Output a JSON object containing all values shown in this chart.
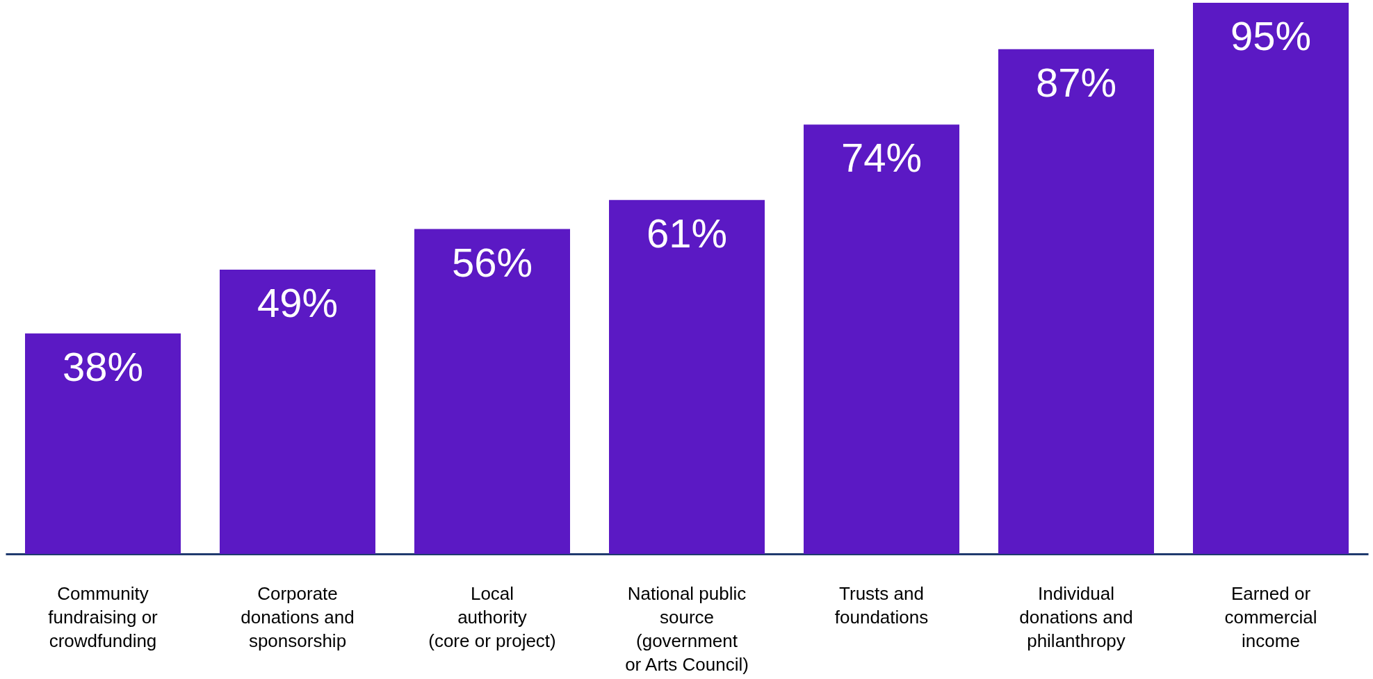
{
  "chart_data": {
    "type": "bar",
    "categories": [
      "Community\nfundraising or\ncrowdfunding",
      "Corporate\ndonations and\nsponsorship",
      "Local\nauthority\n(core or project)",
      "National public\nsource\n(government\nor Arts Council)",
      "Trusts and\nfoundations",
      "Individual\ndonations and\nphilanthropy",
      "Earned or\ncommercial\nincome"
    ],
    "values": [
      38,
      49,
      56,
      61,
      74,
      87,
      95
    ],
    "value_labels": [
      "38%",
      "49%",
      "56%",
      "61%",
      "74%",
      "87%",
      "95%"
    ],
    "color": "#5b19c4",
    "ylim": [
      0,
      95
    ],
    "grid": false
  }
}
